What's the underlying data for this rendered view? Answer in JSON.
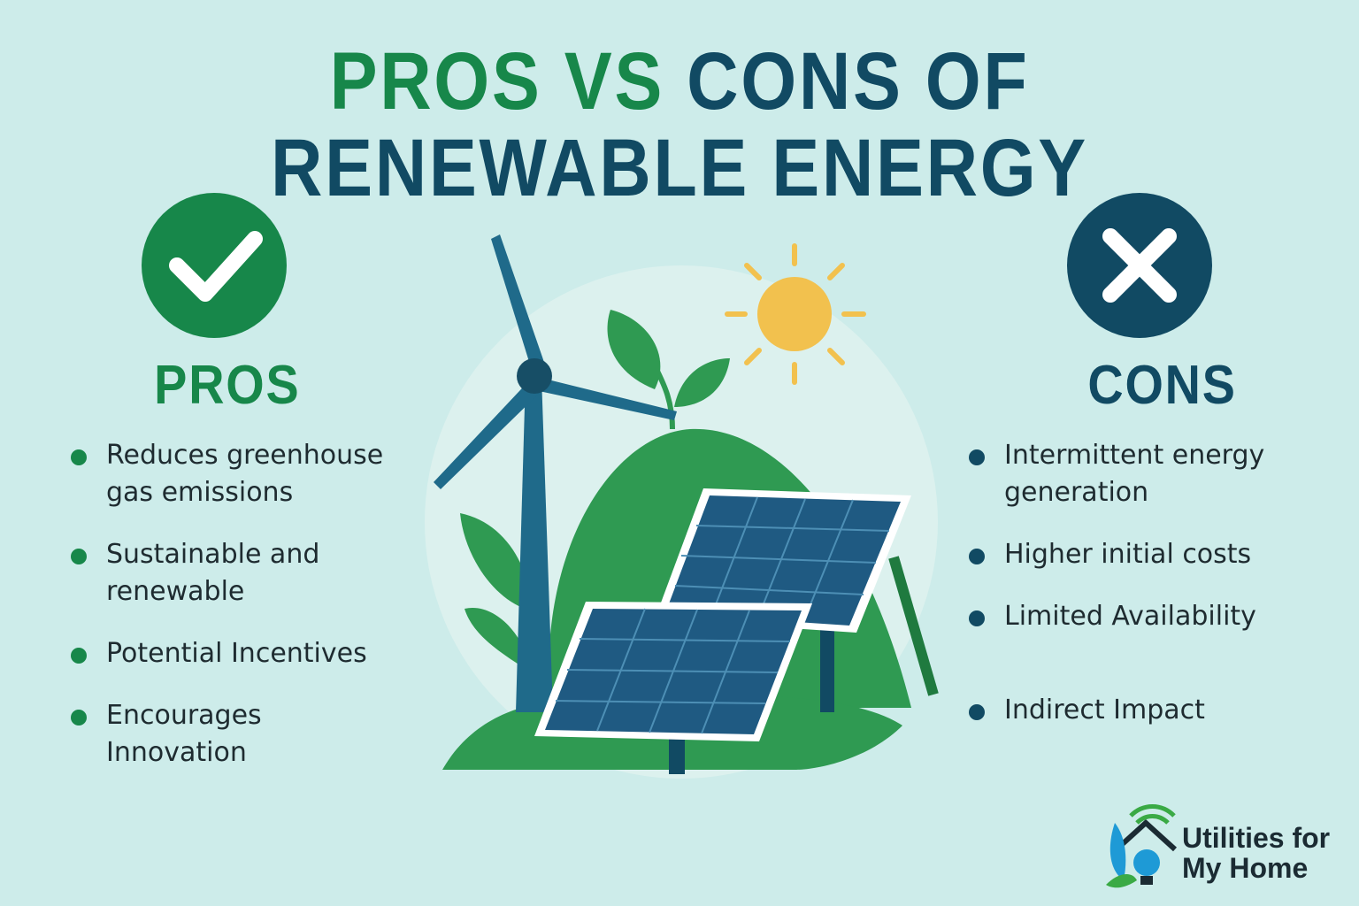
{
  "title": {
    "pros_part": "PROS VS",
    "cons_part": "CONS OF",
    "line2": "RENEWABLE ENERGY"
  },
  "pros": {
    "heading": "PROS",
    "items": [
      "Reduces greenhouse gas emissions",
      "Sustainable and renewable",
      "Potential Incentives",
      "Encourages Innovation"
    ]
  },
  "cons": {
    "heading": "CONS",
    "items": [
      "Intermittent energy generation",
      "Higher initial costs",
      "Limited Availability",
      "Indirect Impact"
    ]
  },
  "logo": {
    "text": "Utilities for My Home"
  }
}
